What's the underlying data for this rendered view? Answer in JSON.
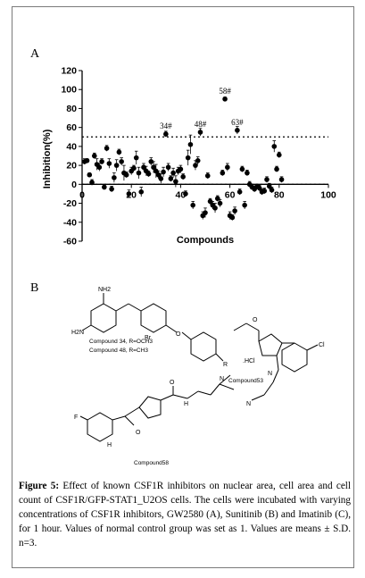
{
  "figure": {
    "panel_a_label": "A",
    "panel_b_label": "B",
    "caption_lead": "Figure 5:",
    "caption_text": "Effect of known CSF1R inhibitors on nuclear area, cell area and cell count of CSF1R/GFP-STAT1_U2OS cells. The cells were incubated with varying concentrations of CSF1R inhibitors, GW2580 (A), Sunitinib (B) and Imatinib (C), for 1 hour. Values of normal control group was set as 1. Values are means ± S.D. n=3."
  },
  "chart_data": {
    "type": "scatter",
    "xlabel": "Compounds",
    "ylabel": "Inhibition(%)",
    "xlim": [
      0,
      100
    ],
    "ylim": [
      -60,
      120
    ],
    "x_ticks": [
      0,
      20,
      40,
      60,
      80,
      100
    ],
    "y_ticks": [
      -60,
      -40,
      -20,
      0,
      20,
      40,
      60,
      80,
      100,
      120
    ],
    "threshold_lines": [
      50,
      0
    ],
    "grid": false,
    "series": [
      {
        "points": [
          {
            "x": 1,
            "y": 24,
            "err": 3
          },
          {
            "x": 2,
            "y": 25,
            "err": 2
          },
          {
            "x": 3,
            "y": 10,
            "err": 2
          },
          {
            "x": 4,
            "y": 2,
            "err": 3
          },
          {
            "x": 5,
            "y": 30,
            "err": 3
          },
          {
            "x": 6,
            "y": 21,
            "err": 6
          },
          {
            "x": 7,
            "y": 18,
            "err": 4
          },
          {
            "x": 8,
            "y": 24,
            "err": 3
          },
          {
            "x": 9,
            "y": -3,
            "err": 2
          },
          {
            "x": 10,
            "y": 38,
            "err": 3
          },
          {
            "x": 11,
            "y": 22,
            "err": 5
          },
          {
            "x": 12,
            "y": -5,
            "err": 3
          },
          {
            "x": 13,
            "y": 7,
            "err": 5
          },
          {
            "x": 14,
            "y": 20,
            "err": 6
          },
          {
            "x": 15,
            "y": 34,
            "err": 3
          },
          {
            "x": 16,
            "y": 24,
            "err": 4
          },
          {
            "x": 17,
            "y": 12,
            "err": 8
          },
          {
            "x": 18,
            "y": 10,
            "err": 3
          },
          {
            "x": 19,
            "y": -10,
            "err": 4
          },
          {
            "x": 20,
            "y": 14,
            "err": 4
          },
          {
            "x": 21,
            "y": 17,
            "err": 3
          },
          {
            "x": 22,
            "y": 28,
            "err": 7
          },
          {
            "x": 23,
            "y": 12,
            "err": 6
          },
          {
            "x": 24,
            "y": -8,
            "err": 5
          },
          {
            "x": 25,
            "y": 18,
            "err": 4
          },
          {
            "x": 26,
            "y": 14,
            "err": 5
          },
          {
            "x": 27,
            "y": 11,
            "err": 3
          },
          {
            "x": 28,
            "y": 24,
            "err": 4
          },
          {
            "x": 29,
            "y": 18,
            "err": 6
          },
          {
            "x": 30,
            "y": 14,
            "err": 7
          },
          {
            "x": 31,
            "y": 10,
            "err": 4
          },
          {
            "x": 32,
            "y": 6,
            "err": 5
          },
          {
            "x": 33,
            "y": 13,
            "err": 5
          },
          {
            "x": 34,
            "y": 53,
            "err": 3
          },
          {
            "x": 35,
            "y": 18,
            "err": 4
          },
          {
            "x": 36,
            "y": 6,
            "err": 3
          },
          {
            "x": 37,
            "y": 12,
            "err": 5
          },
          {
            "x": 38,
            "y": 3,
            "err": 6
          },
          {
            "x": 39,
            "y": 14,
            "err": 4
          },
          {
            "x": 40,
            "y": 16,
            "err": 4
          },
          {
            "x": 41,
            "y": 8,
            "err": 3
          },
          {
            "x": 42,
            "y": -10,
            "err": 3
          },
          {
            "x": 43,
            "y": 28,
            "err": 8
          },
          {
            "x": 44,
            "y": 42,
            "err": 10
          },
          {
            "x": 45,
            "y": -22,
            "err": 4
          },
          {
            "x": 46,
            "y": 20,
            "err": 5
          },
          {
            "x": 47,
            "y": 25,
            "err": 4
          },
          {
            "x": 48,
            "y": 55,
            "err": 4
          },
          {
            "x": 49,
            "y": -33,
            "err": 4
          },
          {
            "x": 50,
            "y": -30,
            "err": 5
          },
          {
            "x": 51,
            "y": 9,
            "err": 3
          },
          {
            "x": 52,
            "y": -18,
            "err": 3
          },
          {
            "x": 53,
            "y": -22,
            "err": 4
          },
          {
            "x": 54,
            "y": -25,
            "err": 5
          },
          {
            "x": 55,
            "y": -15,
            "err": 3
          },
          {
            "x": 56,
            "y": -20,
            "err": 4
          },
          {
            "x": 57,
            "y": 12,
            "err": 3
          },
          {
            "x": 58,
            "y": 90,
            "err": 2
          },
          {
            "x": 59,
            "y": 18,
            "err": 4
          },
          {
            "x": 60,
            "y": -33,
            "err": 4
          },
          {
            "x": 61,
            "y": -35,
            "err": 3
          },
          {
            "x": 62,
            "y": -28,
            "err": 4
          },
          {
            "x": 63,
            "y": 57,
            "err": 4
          },
          {
            "x": 64,
            "y": -8,
            "err": 3
          },
          {
            "x": 65,
            "y": 16,
            "err": 3
          },
          {
            "x": 66,
            "y": -22,
            "err": 4
          },
          {
            "x": 67,
            "y": 12,
            "err": 3
          },
          {
            "x": 68,
            "y": 0,
            "err": 3
          },
          {
            "x": 69,
            "y": -3,
            "err": 2
          },
          {
            "x": 70,
            "y": -5,
            "err": 3
          },
          {
            "x": 71,
            "y": -2,
            "err": 2
          },
          {
            "x": 72,
            "y": -4,
            "err": 3
          },
          {
            "x": 73,
            "y": -8,
            "err": 3
          },
          {
            "x": 74,
            "y": -7,
            "err": 3
          },
          {
            "x": 75,
            "y": 5,
            "err": 3
          },
          {
            "x": 76,
            "y": -2,
            "err": 3
          },
          {
            "x": 77,
            "y": -6,
            "err": 3
          },
          {
            "x": 78,
            "y": 40,
            "err": 6
          },
          {
            "x": 79,
            "y": 16,
            "err": 3
          },
          {
            "x": 80,
            "y": 31,
            "err": 3
          },
          {
            "x": 81,
            "y": 5,
            "err": 3
          }
        ]
      }
    ],
    "annotations": [
      {
        "text": "34#",
        "x": 34,
        "y": 53
      },
      {
        "text": "48#",
        "x": 48,
        "y": 55
      },
      {
        "text": "58#",
        "x": 58,
        "y": 90
      },
      {
        "text": "63#",
        "x": 63,
        "y": 57
      }
    ]
  },
  "structures": {
    "compound_34_48_line1": "Compound 34, R=OCH3",
    "compound_34_48_line2": "Compound 48, R=CH3",
    "compound_53": "Compound53",
    "compound_58": "Compound58",
    "r_label": "R",
    "nh2_top": "NH2",
    "nh2_left": "H2N",
    "br_label": "Br",
    "o_label": "O",
    "n_label": "N",
    "nh_label": "NH",
    "h_label": "H",
    "hcl_label": ".HCl",
    "cl_label": "Cl",
    "f_label": "F"
  }
}
